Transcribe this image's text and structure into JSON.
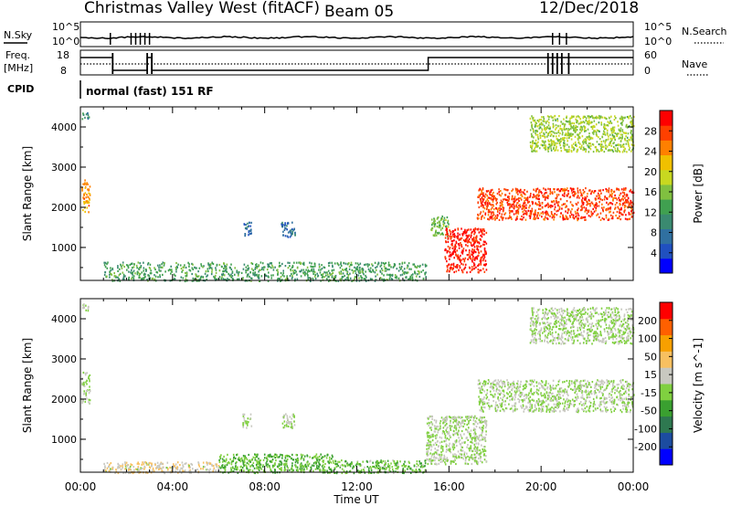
{
  "header": {
    "title": "Christmas Valley West (fitACF)",
    "beam": "Beam 05",
    "date": "12/Dec/2018"
  },
  "status_panels": {
    "nsky_label": "N.Sky",
    "nsearch_label": "N.Search",
    "noise_ticks": [
      "10^5",
      "10^0"
    ],
    "freq_label_1": "Freq.",
    "freq_label_2": "[MHz]",
    "freq_ticks": [
      "18",
      "8"
    ],
    "nave_label": "Nave",
    "nave_ticks": [
      "60",
      "0"
    ],
    "cpid_label": "CPID",
    "cpid_text": "normal (fast) 151 RF"
  },
  "xaxis": {
    "ticks": [
      "00:00",
      "04:00",
      "08:00",
      "12:00",
      "16:00",
      "20:00",
      "00:00"
    ],
    "label": "Time UT"
  },
  "chart_data": [
    {
      "type": "heatmap",
      "ylabel": "Slant Range [km]",
      "yticks": [
        "1000",
        "2000",
        "3000",
        "4000"
      ],
      "ylim": [
        180,
        4500
      ],
      "xlim_hours": [
        0,
        24
      ],
      "colorbar": {
        "label": "Power [dB]",
        "ticks": [
          "4",
          "8",
          "12",
          "16",
          "20",
          "24",
          "28"
        ],
        "range": [
          0,
          30
        ],
        "colors": [
          "#0000ff",
          "#2050c0",
          "#3070a0",
          "#3a8a70",
          "#40a050",
          "#80c040",
          "#c8d820",
          "#f0c000",
          "#ff8000",
          "#ff4000",
          "#ff0000"
        ]
      },
      "regions": [
        {
          "t": [
            0.0,
            0.35
          ],
          "r": [
            4200,
            4400
          ],
          "v": 10
        },
        {
          "t": [
            0.05,
            0.4
          ],
          "r": [
            1900,
            2700
          ],
          "v": 22
        },
        {
          "t": [
            7.0,
            7.4
          ],
          "r": [
            1300,
            1650
          ],
          "v": 6
        },
        {
          "t": [
            8.7,
            9.3
          ],
          "r": [
            1250,
            1650
          ],
          "v": 7
        },
        {
          "t": [
            1.0,
            15.0
          ],
          "r": [
            180,
            650
          ],
          "v": 12
        },
        {
          "t": [
            15.2,
            16.0
          ],
          "r": [
            1300,
            1800
          ],
          "v": 14
        },
        {
          "t": [
            15.8,
            17.6
          ],
          "r": [
            400,
            1500
          ],
          "v": 28
        },
        {
          "t": [
            17.2,
            24.0
          ],
          "r": [
            1700,
            2500
          ],
          "v": 26
        },
        {
          "t": [
            19.5,
            24.0
          ],
          "r": [
            3400,
            4300
          ],
          "v": 16
        }
      ]
    },
    {
      "type": "heatmap",
      "ylabel": "Slant Range [km]",
      "yticks": [
        "1000",
        "2000",
        "3000",
        "4000"
      ],
      "ylim": [
        180,
        4500
      ],
      "xlim_hours": [
        0,
        24
      ],
      "colorbar": {
        "label": "Velocity [m s^-1]",
        "ticks": [
          "200",
          "100",
          "50",
          "15",
          "-15",
          "-50",
          "-100",
          "-200"
        ],
        "range": [
          -250,
          250
        ],
        "colors": [
          "#0000ff",
          "#1c4ca0",
          "#2e7850",
          "#3aa030",
          "#80d040",
          "#c8c8c0",
          "#f8c060",
          "#f8a000",
          "#ff6000",
          "#ff0000"
        ]
      },
      "regions": [
        {
          "t": [
            0.0,
            0.35
          ],
          "r": [
            4200,
            4400
          ],
          "v": 0
        },
        {
          "t": [
            0.05,
            0.4
          ],
          "r": [
            1900,
            2700
          ],
          "v": 0
        },
        {
          "t": [
            7.0,
            7.4
          ],
          "r": [
            1300,
            1650
          ],
          "v": 0
        },
        {
          "t": [
            8.7,
            9.3
          ],
          "r": [
            1250,
            1650
          ],
          "v": 0
        },
        {
          "t": [
            1.0,
            6.0
          ],
          "r": [
            180,
            450
          ],
          "v": 40
        },
        {
          "t": [
            6.0,
            11.0
          ],
          "r": [
            180,
            650
          ],
          "v": -45
        },
        {
          "t": [
            11.0,
            15.0
          ],
          "r": [
            180,
            500
          ],
          "v": -35
        },
        {
          "t": [
            15.0,
            17.6
          ],
          "r": [
            400,
            1600
          ],
          "v": 0
        },
        {
          "t": [
            17.2,
            24.0
          ],
          "r": [
            1700,
            2500
          ],
          "v": 0
        },
        {
          "t": [
            19.5,
            24.0
          ],
          "r": [
            3400,
            4300
          ],
          "v": 0
        }
      ]
    }
  ]
}
